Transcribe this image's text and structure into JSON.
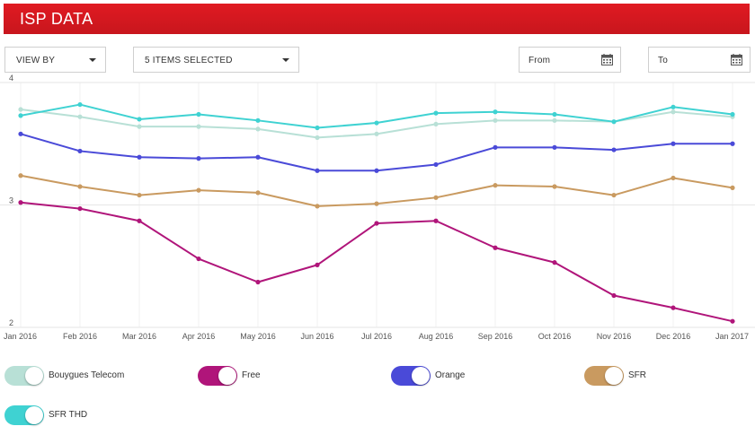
{
  "header": {
    "title": "ISP DATA"
  },
  "controls": {
    "view_by": "VIEW BY",
    "items_selected": "5 ITEMS SELECTED",
    "from_label": "From",
    "to_label": "To"
  },
  "colors": {
    "header_red": "#d5181f",
    "Bouygues Telecom": "#b8e0d6",
    "Free": "#b0157a",
    "Orange": "#4a4ad8",
    "SFR": "#c99a60",
    "SFR THD": "#3fd2d2"
  },
  "legend": [
    {
      "name": "Bouygues Telecom",
      "color": "#b8e0d6",
      "on": true
    },
    {
      "name": "Free",
      "color": "#b0157a",
      "on": true
    },
    {
      "name": "Orange",
      "color": "#4a4ad8",
      "on": true
    },
    {
      "name": "SFR",
      "color": "#c99a60",
      "on": true
    },
    {
      "name": "SFR THD",
      "color": "#3fd2d2",
      "on": true
    }
  ],
  "chart_data": {
    "type": "line",
    "categories": [
      "Jan 2016",
      "Feb 2016",
      "Mar 2016",
      "Apr 2016",
      "May 2016",
      "Jun 2016",
      "Jul 2016",
      "Aug 2016",
      "Sep 2016",
      "Oct 2016",
      "Nov 2016",
      "Dec 2016",
      "Jan 2017"
    ],
    "ylim": [
      2,
      4
    ],
    "yticks": [
      "2",
      "3",
      "4"
    ],
    "grid": true,
    "series": [
      {
        "name": "Bouygues Telecom",
        "color": "#b8e0d6",
        "values": [
          3.78,
          3.72,
          3.64,
          3.64,
          3.62,
          3.55,
          3.58,
          3.66,
          3.69,
          3.69,
          3.68,
          3.76,
          3.72
        ]
      },
      {
        "name": "SFR THD",
        "color": "#3fd2d2",
        "values": [
          3.73,
          3.82,
          3.7,
          3.74,
          3.69,
          3.63,
          3.67,
          3.75,
          3.76,
          3.74,
          3.68,
          3.8,
          3.74
        ]
      },
      {
        "name": "Orange",
        "color": "#4a4ad8",
        "values": [
          3.58,
          3.44,
          3.39,
          3.38,
          3.39,
          3.28,
          3.28,
          3.33,
          3.47,
          3.47,
          3.45,
          3.5,
          3.5
        ]
      },
      {
        "name": "SFR",
        "color": "#c99a60",
        "values": [
          3.24,
          3.15,
          3.08,
          3.12,
          3.1,
          2.99,
          3.01,
          3.06,
          3.16,
          3.15,
          3.08,
          3.22,
          3.14
        ]
      },
      {
        "name": "Free",
        "color": "#b0157a",
        "values": [
          3.02,
          2.97,
          2.87,
          2.56,
          2.37,
          2.51,
          2.85,
          2.87,
          2.65,
          2.53,
          2.26,
          2.16,
          2.05
        ]
      }
    ]
  }
}
